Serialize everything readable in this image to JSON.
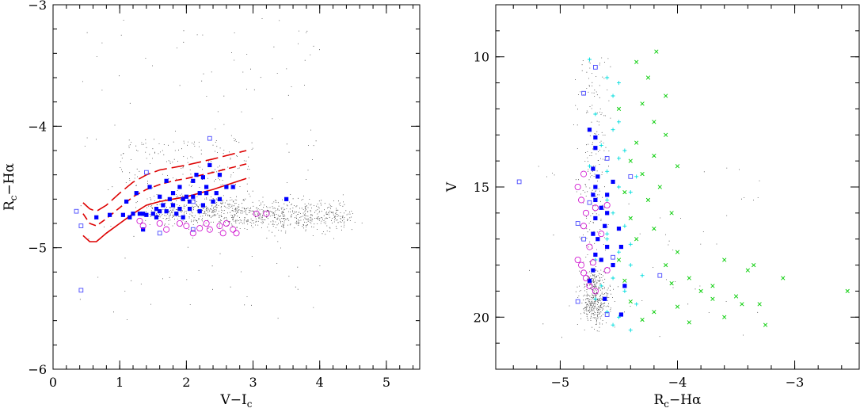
{
  "chart_data": [
    {
      "type": "scatter",
      "title": "",
      "xlabel": "V−I",
      "xlabel_sub": "c",
      "ylabel": "R",
      "ylabel_sub": "c",
      "ylabel_tail": "−Hα",
      "xlim": [
        0,
        5.5
      ],
      "ylim": [
        -3,
        -6
      ],
      "xticks": [
        0,
        1,
        2,
        3,
        4,
        5
      ],
      "xtick_labels": [
        "0",
        "1",
        "2",
        "3",
        "4",
        "5"
      ],
      "yticks": [
        -3,
        -4,
        -5,
        -6
      ],
      "ytick_labels": [
        "−3",
        "−4",
        "−5",
        "−6"
      ],
      "grid": false,
      "series": [
        {
          "marker": "filled-square",
          "color": "#0000ff",
          "points": [
            [
              0.65,
              -4.75
            ],
            [
              0.85,
              -4.73
            ],
            [
              1.05,
              -4.73
            ],
            [
              1.1,
              -4.62
            ],
            [
              1.15,
              -4.75
            ],
            [
              1.25,
              -4.55
            ],
            [
              1.3,
              -4.72
            ],
            [
              1.35,
              -4.72
            ],
            [
              1.45,
              -4.5
            ],
            [
              1.5,
              -4.72
            ],
            [
              1.55,
              -4.68
            ],
            [
              1.6,
              -4.7
            ],
            [
              1.65,
              -4.65
            ],
            [
              1.7,
              -4.45
            ],
            [
              1.75,
              -4.6
            ],
            [
              1.8,
              -4.55
            ],
            [
              1.85,
              -4.72
            ],
            [
              1.9,
              -4.68
            ],
            [
              1.95,
              -4.6
            ],
            [
              2.0,
              -4.58
            ],
            [
              2.05,
              -4.62
            ],
            [
              2.1,
              -4.45
            ],
            [
              2.1,
              -4.58
            ],
            [
              2.15,
              -4.4
            ],
            [
              2.2,
              -4.55
            ],
            [
              2.25,
              -4.65
            ],
            [
              2.3,
              -4.55
            ],
            [
              2.35,
              -4.32
            ],
            [
              2.4,
              -4.62
            ],
            [
              2.5,
              -4.4
            ],
            [
              2.5,
              -4.6
            ],
            [
              2.6,
              -4.5
            ],
            [
              2.7,
              -4.5
            ],
            [
              1.35,
              -4.85
            ],
            [
              1.4,
              -4.73
            ],
            [
              1.55,
              -4.75
            ],
            [
              1.7,
              -4.7
            ],
            [
              1.8,
              -4.65
            ],
            [
              1.95,
              -4.75
            ],
            [
              2.05,
              -4.68
            ],
            [
              2.2,
              -4.7
            ],
            [
              2.3,
              -4.5
            ],
            [
              2.45,
              -4.55
            ],
            [
              3.5,
              -4.6
            ],
            [
              1.6,
              -4.58
            ],
            [
              1.9,
              -4.5
            ],
            [
              2.25,
              -4.42
            ],
            [
              1.2,
              -4.72
            ]
          ]
        },
        {
          "marker": "open-square",
          "color": "#4a4aff",
          "points": [
            [
              0.35,
              -4.7
            ],
            [
              0.42,
              -4.82
            ],
            [
              0.42,
              -5.35
            ],
            [
              1.4,
              -4.38
            ],
            [
              1.6,
              -4.88
            ],
            [
              2.1,
              -4.85
            ],
            [
              2.35,
              -4.1
            ],
            [
              2.1,
              -4.62
            ],
            [
              2.7,
              -4.5
            ]
          ]
        },
        {
          "marker": "open-circle",
          "color": "#cc00cc",
          "points": [
            [
              1.3,
              -4.78
            ],
            [
              1.35,
              -4.82
            ],
            [
              1.7,
              -4.85
            ],
            [
              1.9,
              -4.8
            ],
            [
              2.0,
              -4.82
            ],
            [
              2.1,
              -4.88
            ],
            [
              2.2,
              -4.84
            ],
            [
              2.3,
              -4.8
            ],
            [
              2.35,
              -4.85
            ],
            [
              2.5,
              -4.82
            ],
            [
              2.6,
              -4.8
            ],
            [
              2.7,
              -4.85
            ],
            [
              2.75,
              -4.88
            ],
            [
              3.05,
              -4.72
            ],
            [
              3.2,
              -4.72
            ],
            [
              1.6,
              -4.8
            ],
            [
              2.55,
              -4.88
            ]
          ]
        }
      ],
      "curves": [
        {
          "style": "solid",
          "color": "#dd0000",
          "points": [
            [
              0.45,
              -4.9
            ],
            [
              0.55,
              -4.95
            ],
            [
              0.65,
              -4.95
            ],
            [
              0.8,
              -4.88
            ],
            [
              1.0,
              -4.8
            ],
            [
              1.2,
              -4.72
            ],
            [
              1.4,
              -4.65
            ],
            [
              1.6,
              -4.62
            ],
            [
              1.8,
              -4.6
            ],
            [
              2.0,
              -4.58
            ],
            [
              2.4,
              -4.52
            ],
            [
              2.9,
              -4.43
            ]
          ]
        },
        {
          "style": "dashed",
          "color": "#dd0000",
          "points": [
            [
              0.45,
              -4.72
            ],
            [
              0.55,
              -4.8
            ],
            [
              0.65,
              -4.82
            ],
            [
              0.8,
              -4.76
            ],
            [
              1.0,
              -4.67
            ],
            [
              1.2,
              -4.58
            ],
            [
              1.4,
              -4.52
            ],
            [
              1.6,
              -4.48
            ],
            [
              1.8,
              -4.45
            ],
            [
              2.0,
              -4.43
            ],
            [
              2.4,
              -4.38
            ],
            [
              2.9,
              -4.31
            ]
          ]
        },
        {
          "style": "longdash",
          "color": "#dd0000",
          "points": [
            [
              0.45,
              -4.63
            ],
            [
              0.55,
              -4.68
            ],
            [
              0.65,
              -4.7
            ],
            [
              0.8,
              -4.65
            ],
            [
              1.0,
              -4.55
            ],
            [
              1.2,
              -4.46
            ],
            [
              1.4,
              -4.4
            ],
            [
              1.6,
              -4.36
            ],
            [
              1.8,
              -4.34
            ],
            [
              2.0,
              -4.32
            ],
            [
              2.4,
              -4.27
            ],
            [
              2.9,
              -4.2
            ]
          ]
        }
      ]
    },
    {
      "type": "scatter",
      "title": "",
      "xlabel": "R",
      "xlabel_sub": "c",
      "xlabel_tail": "−Hα",
      "ylabel": "V",
      "xlim": [
        -5.55,
        -2.45
      ],
      "ylim": [
        8,
        22
      ],
      "xticks": [
        -5,
        -4,
        -3
      ],
      "xtick_labels": [
        "−5",
        "−4",
        "−3"
      ],
      "yticks": [
        10,
        15,
        20
      ],
      "ytick_labels": [
        "10",
        "15",
        "20"
      ],
      "grid": false,
      "series": [
        {
          "marker": "cross",
          "color": "#00cc00",
          "points": [
            [
              -4.18,
              9.8
            ],
            [
              -4.35,
              10.2
            ],
            [
              -4.25,
              10.8
            ],
            [
              -4.1,
              11.5
            ],
            [
              -4.3,
              11.8
            ],
            [
              -4.2,
              12.5
            ],
            [
              -4.1,
              13.0
            ],
            [
              -4.35,
              13.3
            ],
            [
              -4.2,
              13.8
            ],
            [
              -4.0,
              14.2
            ],
            [
              -4.3,
              14.5
            ],
            [
              -4.15,
              15.0
            ],
            [
              -4.25,
              15.5
            ],
            [
              -4.05,
              16.0
            ],
            [
              -4.2,
              16.6
            ],
            [
              -4.35,
              17.0
            ],
            [
              -4.0,
              17.5
            ],
            [
              -4.1,
              18.0
            ],
            [
              -3.9,
              18.5
            ],
            [
              -3.7,
              18.8
            ],
            [
              -3.5,
              19.2
            ],
            [
              -3.3,
              19.5
            ],
            [
              -3.1,
              18.5
            ],
            [
              -2.55,
              19.0
            ],
            [
              -3.4,
              18.2
            ],
            [
              -3.6,
              17.8
            ],
            [
              -3.8,
              19.0
            ],
            [
              -4.0,
              19.6
            ],
            [
              -4.2,
              19.8
            ],
            [
              -4.3,
              20.1
            ],
            [
              -3.25,
              20.3
            ],
            [
              -3.6,
              20.0
            ],
            [
              -3.9,
              20.2
            ],
            [
              -4.4,
              19.4
            ],
            [
              -4.45,
              18.6
            ],
            [
              -4.5,
              17.8
            ],
            [
              -4.4,
              16.2
            ],
            [
              -4.45,
              15.2
            ],
            [
              -4.4,
              14.0
            ],
            [
              -4.5,
              12.0
            ],
            [
              -3.45,
              19.5
            ],
            [
              -3.7,
              19.3
            ],
            [
              -3.35,
              18.0
            ],
            [
              -4.05,
              18.7
            ]
          ]
        },
        {
          "marker": "plus",
          "color": "#00dddd",
          "points": [
            [
              -4.75,
              10.1
            ],
            [
              -4.6,
              10.8
            ],
            [
              -4.55,
              11.5
            ],
            [
              -4.7,
              12.2
            ],
            [
              -4.55,
              12.8
            ],
            [
              -4.65,
              13.4
            ],
            [
              -4.5,
              13.9
            ],
            [
              -4.6,
              14.4
            ],
            [
              -4.5,
              15.0
            ],
            [
              -4.6,
              15.5
            ],
            [
              -4.55,
              16.0
            ],
            [
              -4.45,
              16.5
            ],
            [
              -4.6,
              17.0
            ],
            [
              -4.5,
              17.5
            ],
            [
              -4.4,
              18.0
            ],
            [
              -4.55,
              18.5
            ],
            [
              -4.45,
              19.0
            ],
            [
              -4.35,
              19.5
            ],
            [
              -4.5,
              20.0
            ],
            [
              -4.4,
              20.5
            ],
            [
              -4.6,
              19.8
            ],
            [
              -4.65,
              18.8
            ],
            [
              -4.7,
              17.8
            ],
            [
              -4.6,
              16.8
            ],
            [
              -4.65,
              15.8
            ],
            [
              -4.4,
              15.2
            ],
            [
              -4.35,
              14.6
            ],
            [
              -4.45,
              13.6
            ],
            [
              -4.5,
              12.5
            ],
            [
              -4.4,
              17.2
            ],
            [
              -4.3,
              18.4
            ],
            [
              -4.55,
              20.3
            ],
            [
              -4.7,
              19.3
            ],
            [
              -4.75,
              14.2
            ],
            [
              -4.5,
              11.0
            ]
          ]
        },
        {
          "marker": "filled-square",
          "color": "#0000ff",
          "points": [
            [
              -4.75,
              12.8
            ],
            [
              -4.7,
              13.1
            ],
            [
              -4.7,
              13.5
            ],
            [
              -4.72,
              14.3
            ],
            [
              -4.68,
              14.6
            ],
            [
              -4.7,
              15.0
            ],
            [
              -4.72,
              15.3
            ],
            [
              -4.7,
              15.5
            ],
            [
              -4.65,
              15.8
            ],
            [
              -4.6,
              16.0
            ],
            [
              -4.7,
              16.2
            ],
            [
              -4.62,
              16.5
            ],
            [
              -4.72,
              16.8
            ],
            [
              -4.68,
              17.0
            ],
            [
              -4.6,
              17.3
            ],
            [
              -4.7,
              17.6
            ],
            [
              -4.65,
              17.8
            ],
            [
              -4.55,
              18.0
            ],
            [
              -4.72,
              18.2
            ],
            [
              -4.48,
              17.3
            ],
            [
              -4.5,
              16.6
            ],
            [
              -4.55,
              14.8
            ],
            [
              -4.45,
              18.8
            ],
            [
              -4.48,
              19.9
            ],
            [
              -4.62,
              19.3
            ],
            [
              -4.75,
              18.6
            ],
            [
              -4.6,
              15.3
            ]
          ]
        },
        {
          "marker": "open-square",
          "color": "#4a4aff",
          "points": [
            [
              -5.35,
              14.8
            ],
            [
              -4.8,
              11.4
            ],
            [
              -4.7,
              10.4
            ],
            [
              -4.8,
              17.0
            ],
            [
              -4.85,
              16.4
            ],
            [
              -4.6,
              19.9
            ],
            [
              -4.85,
              19.4
            ],
            [
              -4.6,
              13.9
            ],
            [
              -4.4,
              14.6
            ],
            [
              -4.15,
              18.4
            ],
            [
              -4.75,
              15.6
            ],
            [
              -4.55,
              17.7
            ]
          ]
        },
        {
          "marker": "open-circle",
          "color": "#cc00cc",
          "points": [
            [
              -4.85,
              15.0
            ],
            [
              -4.82,
              15.5
            ],
            [
              -4.8,
              16.5
            ],
            [
              -4.85,
              17.8
            ],
            [
              -4.82,
              18.0
            ],
            [
              -4.8,
              18.3
            ],
            [
              -4.78,
              18.5
            ],
            [
              -4.75,
              17.3
            ],
            [
              -4.72,
              17.9
            ],
            [
              -4.78,
              16.0
            ],
            [
              -4.7,
              15.8
            ],
            [
              -4.6,
              15.7
            ],
            [
              -4.8,
              14.5
            ],
            [
              -4.75,
              18.8
            ],
            [
              -4.6,
              18.2
            ],
            [
              -4.65,
              16.8
            ],
            [
              -4.7,
              19.0
            ]
          ]
        }
      ]
    }
  ]
}
